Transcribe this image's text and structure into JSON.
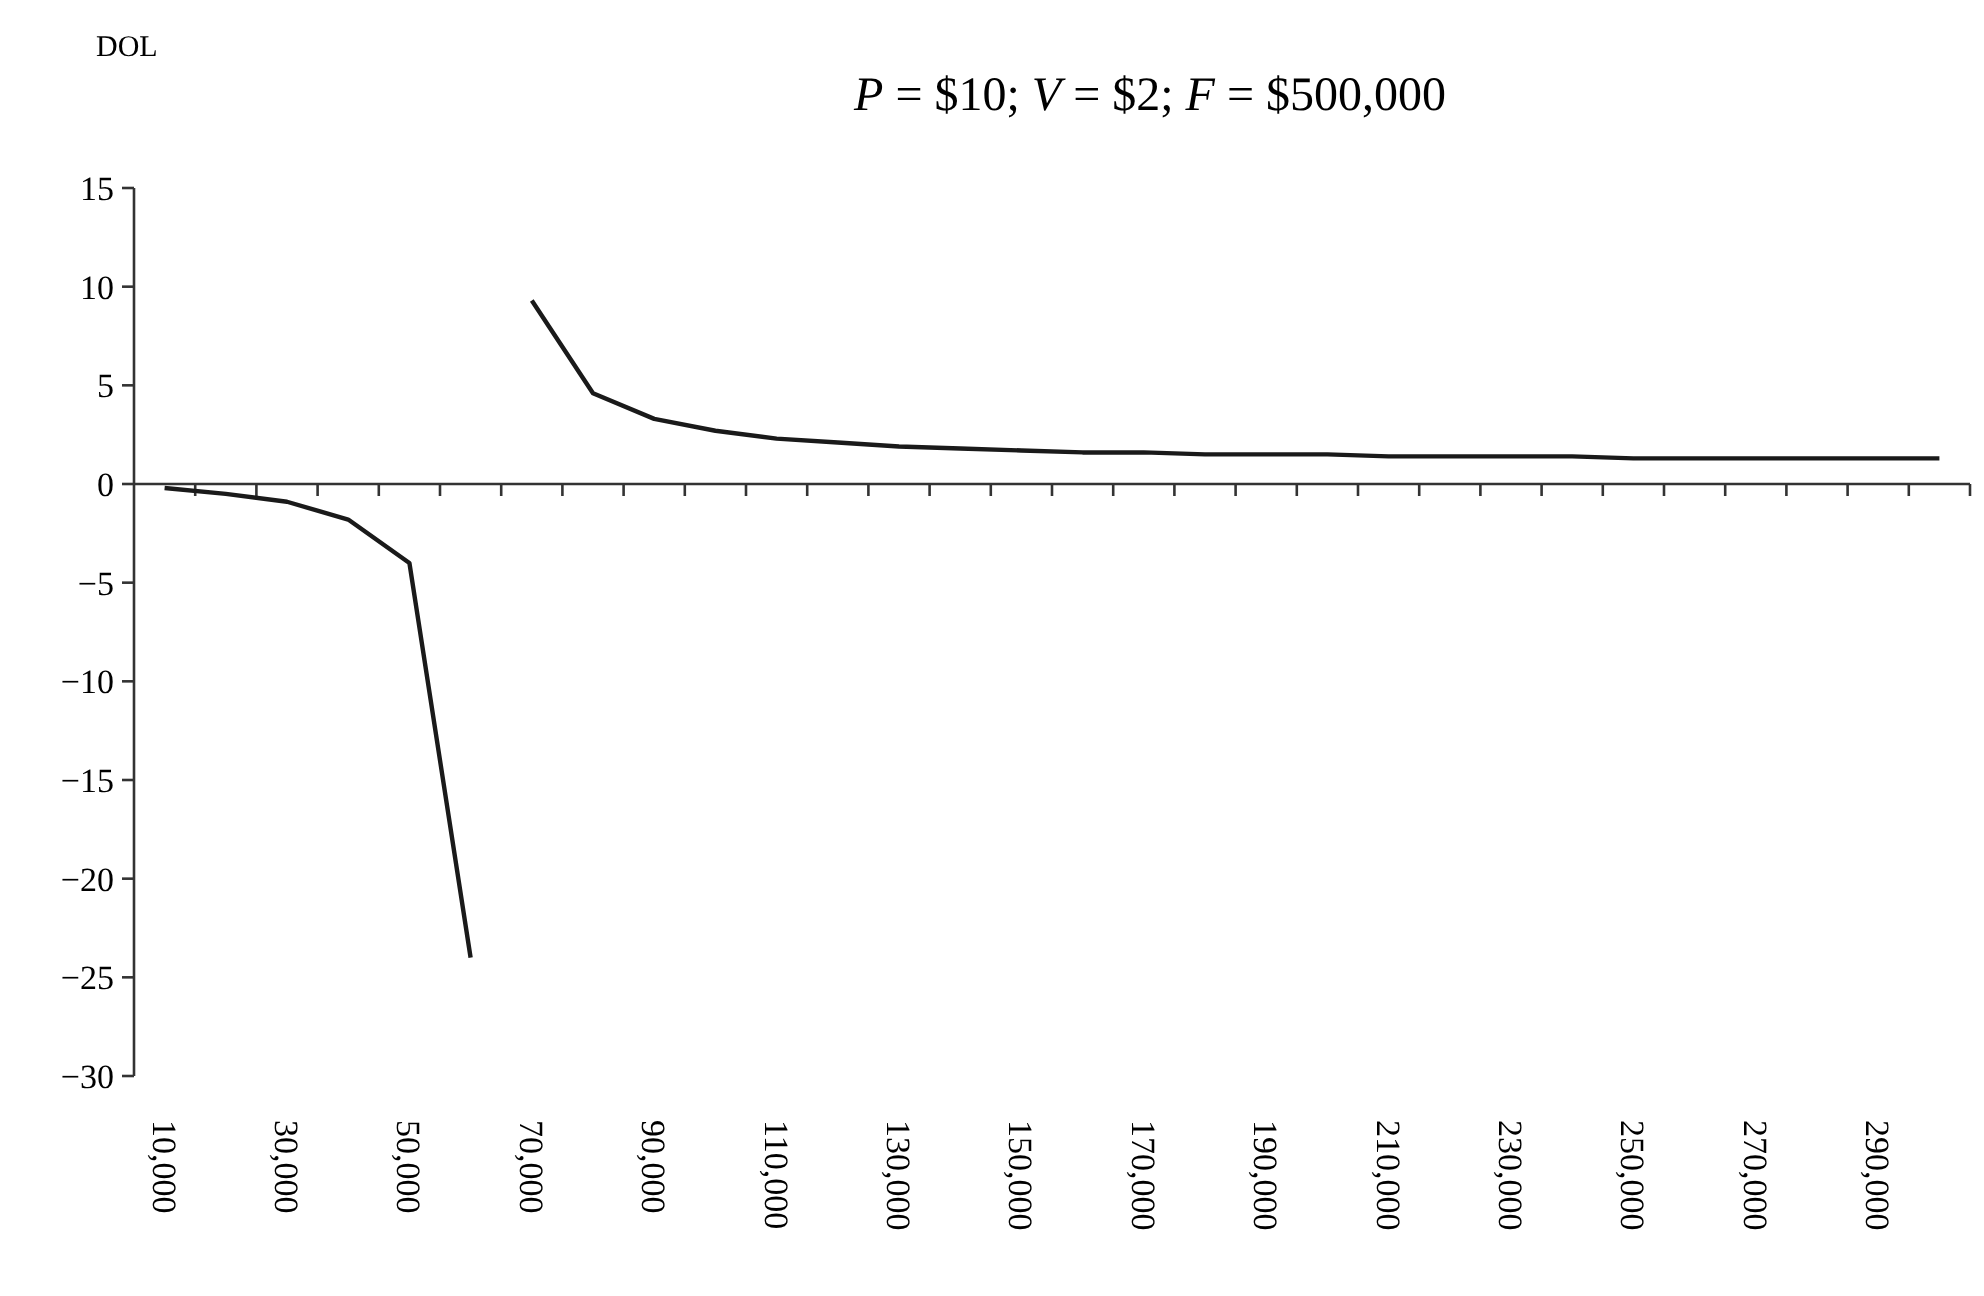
{
  "chart_data": {
    "type": "line",
    "title": "P = $10; V = $2; F = $500,000",
    "ylabel": "DOL",
    "categories": [
      "10,000",
      null,
      "30,000",
      null,
      "50,000",
      null,
      "70,000",
      null,
      "90,000",
      null,
      "110,000",
      null,
      "130,000",
      null,
      "150,000",
      null,
      "170,000",
      null,
      "190,000",
      null,
      "210,000",
      null,
      "230,000",
      null,
      "250,000",
      null,
      "270,000",
      null,
      "290,000",
      null
    ],
    "series": [
      {
        "color": "#1a1a1a",
        "values": [
          -0.2,
          -0.5,
          -0.9,
          -1.8,
          -4,
          -24,
          null,
          null,
          null,
          null,
          null,
          null,
          null,
          null,
          null,
          null,
          null,
          null,
          null,
          null,
          null,
          null,
          null,
          null,
          null,
          null,
          null,
          null,
          null,
          null
        ]
      },
      {
        "color": "#1a1a1a",
        "values": [
          null,
          null,
          null,
          null,
          null,
          null,
          9.3,
          4.6,
          3.3,
          2.7,
          2.3,
          2.1,
          1.9,
          1.8,
          1.7,
          1.6,
          1.6,
          1.5,
          1.5,
          1.5,
          1.4,
          1.4,
          1.4,
          1.4,
          1.3,
          1.3,
          1.3,
          1.3,
          1.3,
          1.3
        ]
      }
    ],
    "ylim": [
      -30,
      15
    ],
    "yticks": [
      -30,
      -25,
      -20,
      -15,
      -10,
      -5,
      0,
      5,
      10,
      15
    ],
    "marker": "none",
    "line_style": "solid"
  }
}
